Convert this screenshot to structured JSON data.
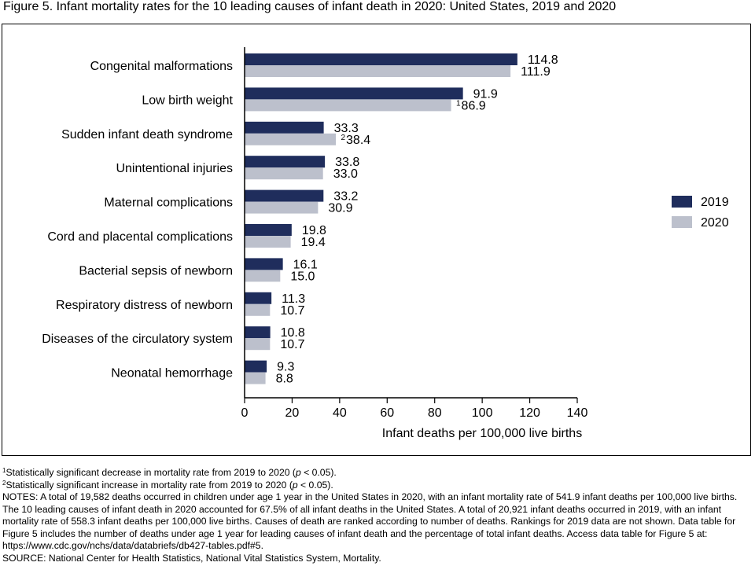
{
  "figure": {
    "title": "Figure 5. Infant mortality rates for the 10 leading causes of infant death in 2020: United States, 2019 and 2020"
  },
  "chart_data": {
    "type": "bar",
    "orientation": "horizontal",
    "categories": [
      "Congenital malformations",
      "Low birth weight",
      "Sudden infant death syndrome",
      "Unintentional injuries",
      "Maternal complications",
      "Cord and placental complications",
      "Bacterial sepsis of newborn",
      "Respiratory distress of newborn",
      "Diseases of the circulatory system",
      "Neonatal hemorrhage"
    ],
    "series": [
      {
        "name": "2019",
        "color": "#1f2d5c",
        "values": [
          114.8,
          91.9,
          33.3,
          33.8,
          33.2,
          19.8,
          16.1,
          11.3,
          10.8,
          9.3
        ],
        "labels": [
          "114.8",
          "91.9",
          "33.3",
          "33.8",
          "33.2",
          "19.8",
          "16.1",
          "11.3",
          "10.8",
          "9.3"
        ],
        "markers": [
          "",
          "",
          "",
          "",
          "",
          "",
          "",
          "",
          "",
          ""
        ]
      },
      {
        "name": "2020",
        "color": "#bcc0cc",
        "values": [
          111.9,
          86.9,
          38.4,
          33.0,
          30.9,
          19.4,
          15.0,
          10.7,
          10.7,
          8.8
        ],
        "labels": [
          "111.9",
          "86.9",
          "38.4",
          "33.0",
          "30.9",
          "19.4",
          "15.0",
          "10.7",
          "10.7",
          "8.8"
        ],
        "markers": [
          "",
          "1",
          "2",
          "",
          "",
          "",
          "",
          "",
          "",
          ""
        ]
      }
    ],
    "xlabel": "Infant deaths per 100,000 live births",
    "xlim": [
      0,
      140
    ],
    "xticks": [
      0,
      20,
      40,
      60,
      80,
      100,
      120,
      140
    ],
    "xtick_labels": [
      "0",
      "20",
      "40",
      "60",
      "80",
      "100",
      "120",
      "140"
    ],
    "grid": false,
    "legend": "right"
  },
  "footnotes": {
    "fn1_marker": "1",
    "fn1_text": "Statistically significant decrease in mortality rate from 2019 to 2020 (",
    "fn1_p": "p",
    "fn1_tail": " < 0.05).",
    "fn2_marker": "2",
    "fn2_text": "Statistically significant increase in mortality rate from 2019 to 2020 (",
    "fn2_p": "p",
    "fn2_tail": " < 0.05).",
    "notes": "NOTES: A total of 19,582 deaths occurred in children under age 1 year in the United States in 2020, with an infant mortality rate of 541.9 infant deaths per 100,000 live births. The 10 leading causes of infant death in 2020 accounted for 67.5% of all infant deaths in the United States. A total of 20,921 infant deaths occurred in 2019, with an infant mortality rate of 558.3 infant deaths per 100,000 live births. Causes of death are ranked according to number of deaths. Rankings for 2019 data are not shown. Data table for Figure 5 includes the number of deaths under age 1 year for leading causes of infant death and the percentage of total infant deaths. Access data table for Figure 5 at: ",
    "link": "https://www.cdc.gov/nchs/data/databriefs/db427-tables.pdf#5",
    "link_tail": ".",
    "source": "SOURCE: National Center for Health Statistics, National Vital Statistics System, Mortality."
  }
}
